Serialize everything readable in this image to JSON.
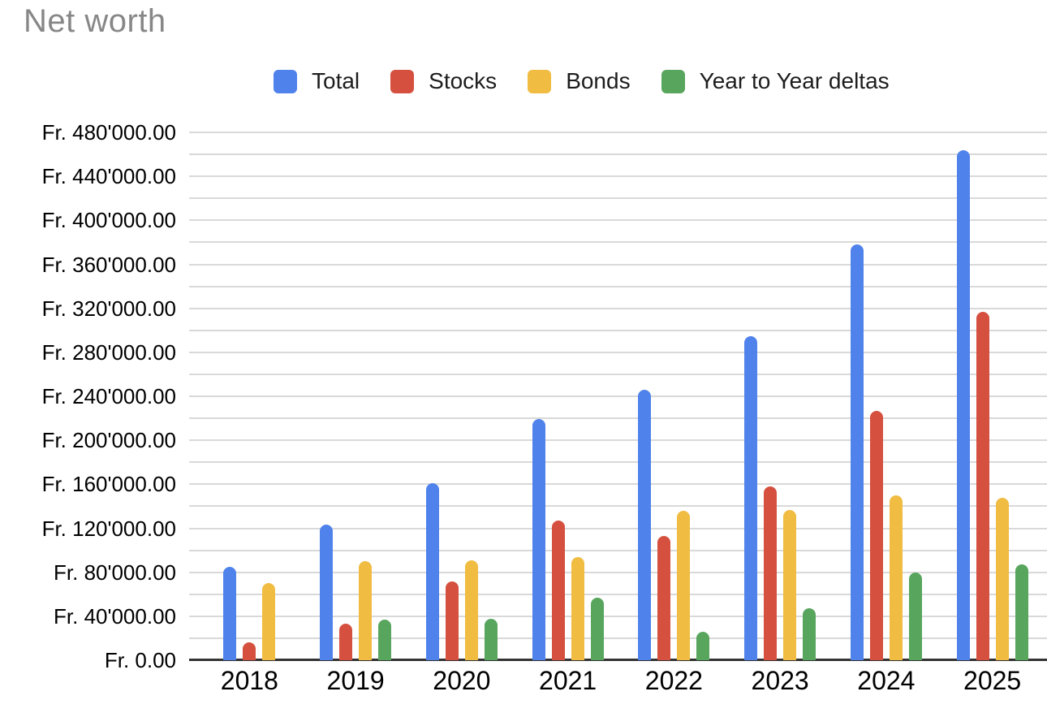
{
  "title": "Net worth",
  "colors": {
    "total": "#5082ec",
    "stocks": "#d5503f",
    "bonds": "#f0bc42",
    "delta": "#58a55e",
    "gridline": "#d9d9d9",
    "axis_line": "#333333",
    "title_text": "#878787",
    "label_text": "#000000"
  },
  "chart_data": {
    "type": "bar",
    "title": "Net worth",
    "legend_position": "top",
    "grid": true,
    "categories": [
      "2018",
      "2019",
      "2020",
      "2021",
      "2022",
      "2023",
      "2024",
      "2025"
    ],
    "series": [
      {
        "name": "Total",
        "color": "#5082ec",
        "values": [
          85000,
          123000,
          161000,
          219000,
          246000,
          295000,
          378000,
          464000
        ]
      },
      {
        "name": "Stocks",
        "color": "#d5503f",
        "values": [
          16000,
          33000,
          72000,
          127000,
          113000,
          158000,
          227000,
          317000
        ]
      },
      {
        "name": "Bonds",
        "color": "#f0bc42",
        "values": [
          70000,
          90000,
          91000,
          94000,
          136000,
          137000,
          150000,
          148000
        ]
      },
      {
        "name": "Year to Year deltas",
        "color": "#58a55e",
        "values": [
          null,
          37000,
          38000,
          57000,
          26000,
          47000,
          80000,
          87000
        ]
      }
    ],
    "y_axis": {
      "min": 0,
      "max": 480000,
      "major_step": 40000,
      "minor_step": 20000,
      "currency_prefix": "Fr. ",
      "tick_labels": [
        "Fr. 480'000.00",
        "Fr. 440'000.00",
        "Fr. 400'000.00",
        "Fr. 360'000.00",
        "Fr. 320'000.00",
        "Fr. 280'000.00",
        "Fr. 240'000.00",
        "Fr. 200'000.00",
        "Fr. 160'000.00",
        "Fr. 120'000.00",
        "Fr. 80'000.00",
        "Fr. 40'000.00",
        "Fr. 0.00"
      ]
    }
  }
}
